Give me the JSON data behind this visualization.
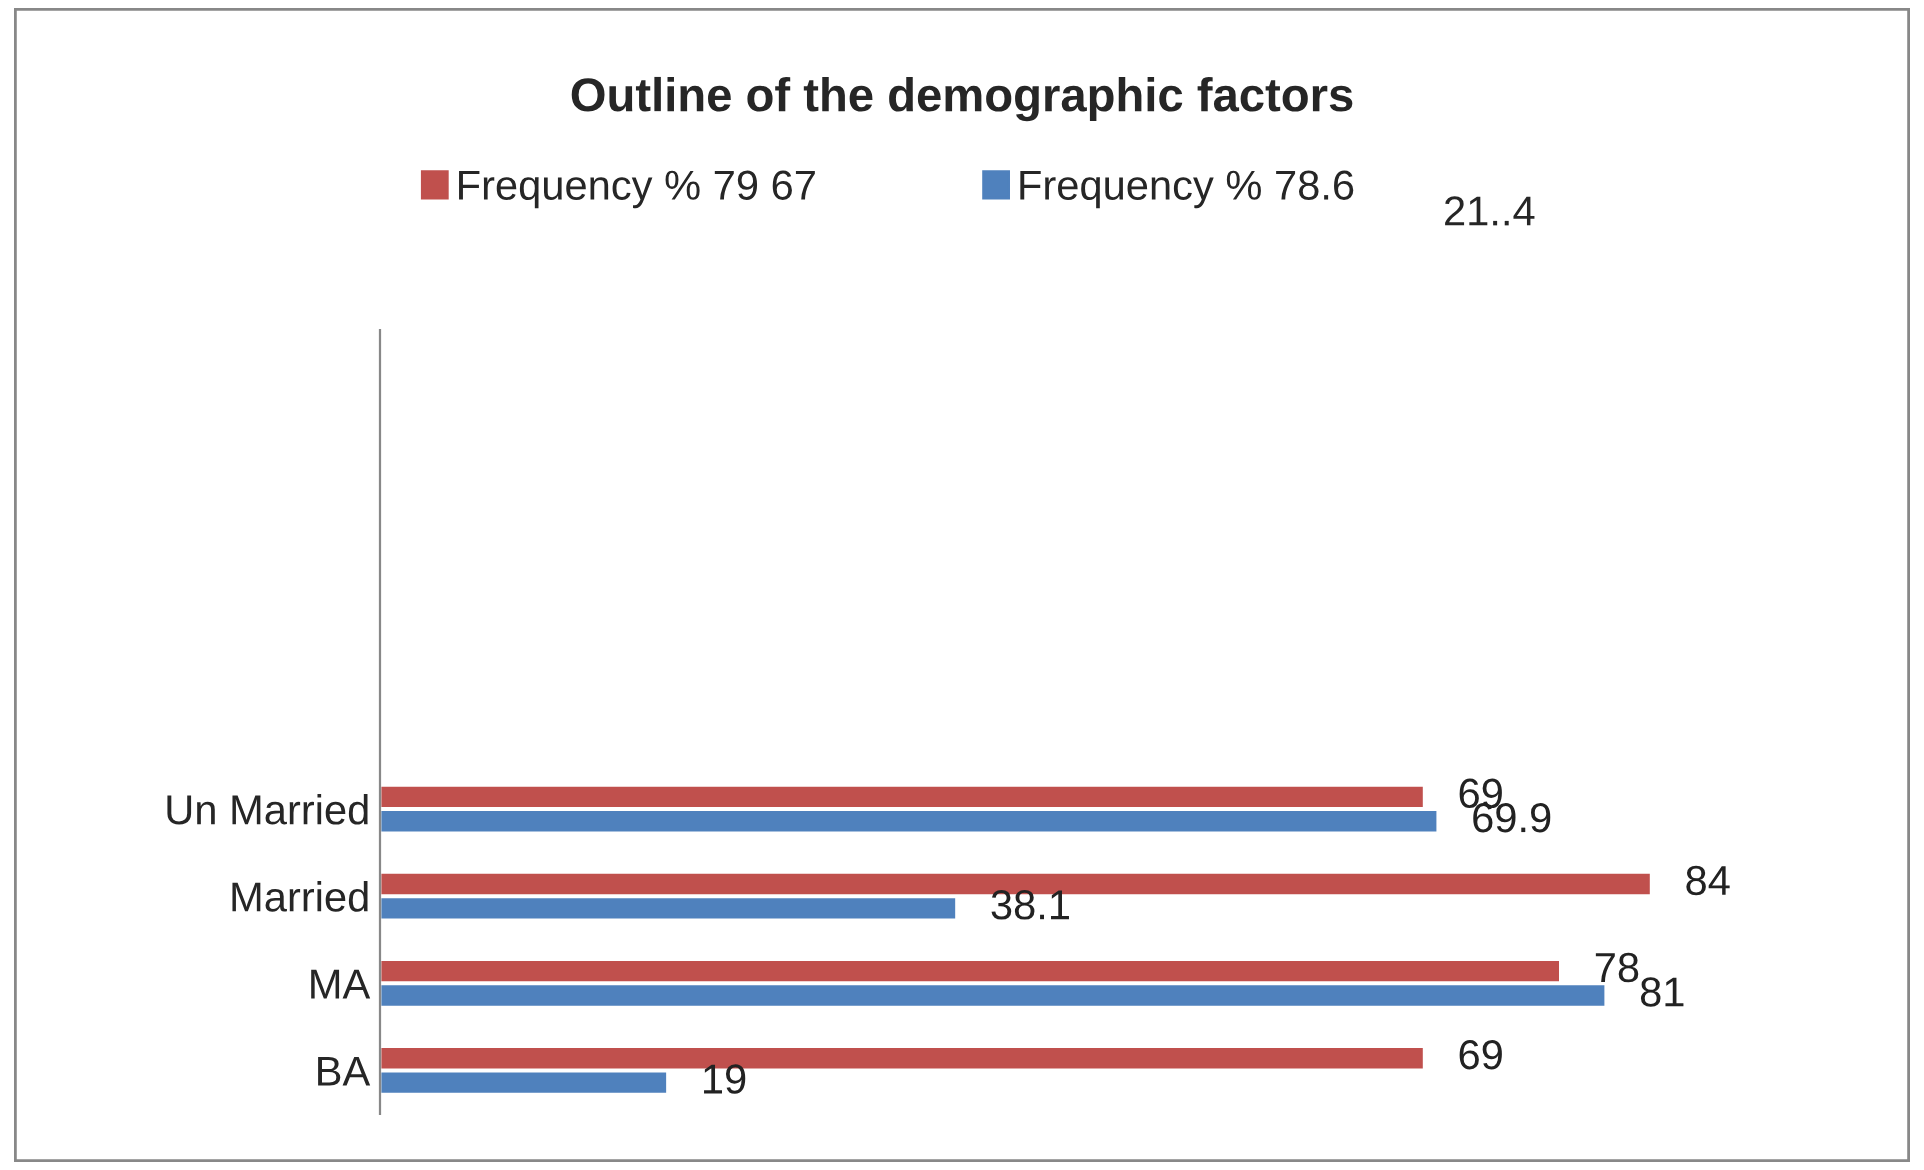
{
  "chart_data": {
    "type": "bar",
    "orientation": "horizontal",
    "title": "Outline of the demographic factors",
    "categories": [
      null,
      null,
      null,
      null,
      null,
      "Un Married",
      "Married",
      "MA",
      "BA"
    ],
    "series": [
      {
        "name": "Frequency % 79 67",
        "color": "#c0504d",
        "values": [
          null,
          null,
          null,
          null,
          null,
          69,
          84,
          78,
          69
        ]
      },
      {
        "name": "Frequency % 78.6",
        "color": "#4f81bd",
        "values": [
          null,
          null,
          null,
          null,
          null,
          69.9,
          38.1,
          81,
          19
        ]
      }
    ],
    "annotations": [
      "21..4"
    ],
    "tick_labels": "y",
    "data_labels": true,
    "legend": "top",
    "grid": false
  }
}
